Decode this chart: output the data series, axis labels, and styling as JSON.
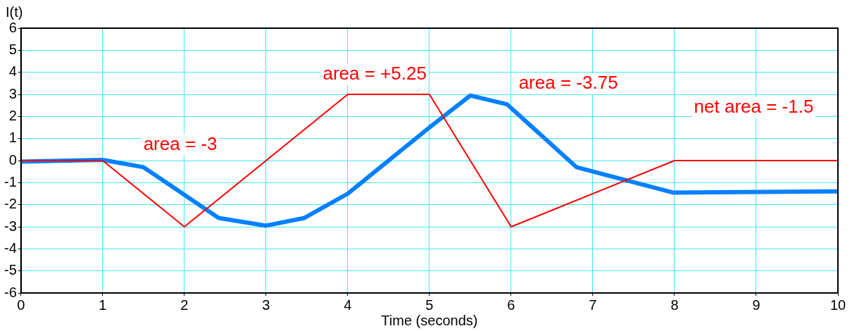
{
  "chart_data": {
    "type": "line",
    "xlabel": "Time (seconds)",
    "ylabel": "I(t)",
    "xlim": [
      0,
      10
    ],
    "xticks": [
      0,
      1,
      2,
      3,
      4,
      5,
      6,
      7,
      8,
      9,
      10
    ],
    "ylim": [
      -6,
      6
    ],
    "yticks": [
      -6,
      -5,
      -4,
      -3,
      -2,
      -1,
      0,
      1,
      2,
      3,
      4,
      5,
      6
    ],
    "grid": true,
    "marker": "none",
    "line_style": "solid",
    "series": [
      {
        "color": "#ff0000",
        "x": [
          0,
          1,
          2,
          4,
          5,
          6,
          8,
          10
        ],
        "values": [
          0,
          0,
          -3,
          3,
          3,
          -3,
          0,
          0
        ]
      },
      {
        "color": "#0080ff",
        "x": [
          0,
          1,
          1.5,
          2.42,
          3,
          3.47,
          4,
          5,
          5.5,
          5.95,
          6.8,
          7.98,
          10
        ],
        "values": [
          -0.05,
          0.03,
          -0.3,
          -2.6,
          -2.95,
          -2.6,
          -1.5,
          1.5,
          2.95,
          2.55,
          -0.3,
          -1.45,
          -1.4
        ]
      }
    ],
    "annotations": [
      "area = -3",
      "area = +5.25",
      "area = -3.75",
      "net area = -1.5"
    ]
  }
}
